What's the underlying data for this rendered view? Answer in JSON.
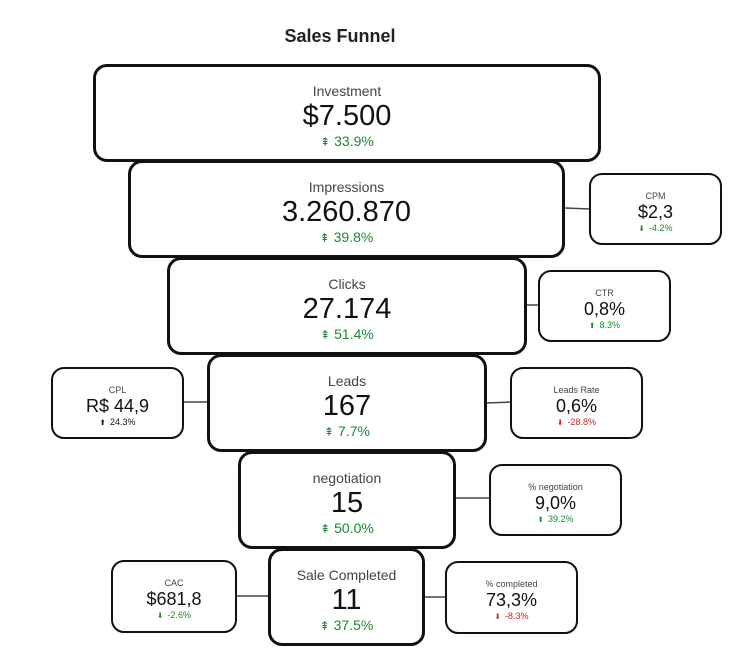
{
  "title": "Sales Funnel",
  "stages": [
    {
      "label": "Investment",
      "value": "$7.500",
      "change": "33.9%",
      "direction": "up"
    },
    {
      "label": "Impressions",
      "value": "3.260.870",
      "change": "39.8%",
      "direction": "up"
    },
    {
      "label": "Clicks",
      "value": "27.174",
      "change": "51.4%",
      "direction": "up"
    },
    {
      "label": "Leads",
      "value": "167",
      "change": "7.7%",
      "direction": "up"
    },
    {
      "label": "negotiation",
      "value": "15",
      "change": "50.0%",
      "direction": "up"
    },
    {
      "label": "Sale Completed",
      "value": "11",
      "change": "37.5%",
      "direction": "up"
    }
  ],
  "metrics": {
    "cpm": {
      "label": "CPM",
      "value": "$2,3",
      "change": "-4.2%",
      "direction": "down",
      "color": "green"
    },
    "ctr": {
      "label": "CTR",
      "value": "0,8%",
      "change": "8.3%",
      "direction": "up",
      "color": "green"
    },
    "cpl": {
      "label": "CPL",
      "value": "R$ 44,9",
      "change": "24.3%",
      "direction": "up",
      "color": "neutral"
    },
    "leads_rate": {
      "label": "Leads Rate",
      "value": "0,6%",
      "change": "-28.8%",
      "direction": "down",
      "color": "red"
    },
    "pct_negotiation": {
      "label": "% negotiation",
      "value": "9,0%",
      "change": "39.2%",
      "direction": "up",
      "color": "green"
    },
    "cac": {
      "label": "CAC",
      "value": "$681,8",
      "change": "-2.6%",
      "direction": "down",
      "color": "green"
    },
    "pct_completed": {
      "label": "% completed",
      "value": "73,3%",
      "change": "-8.3%",
      "direction": "down",
      "color": "red"
    }
  }
}
